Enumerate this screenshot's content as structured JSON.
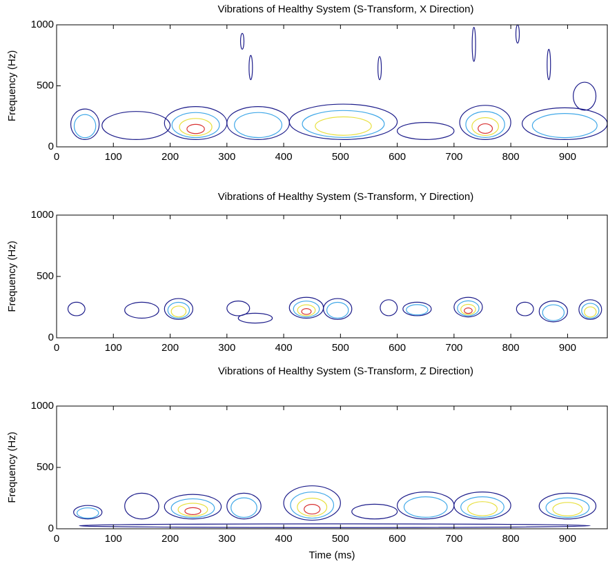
{
  "chart_data": [
    {
      "type": "contour",
      "title": "Vibrations of Healthy System (S-Transform, X Direction)",
      "ylabel": "Frequency (Hz)",
      "xlim": [
        0,
        970
      ],
      "ylim": [
        0,
        1000
      ],
      "xticks": [
        0,
        100,
        200,
        300,
        400,
        500,
        600,
        700,
        800,
        900
      ],
      "yticks": [
        0,
        500,
        1000
      ],
      "level_colors": [
        "#1c1c8a",
        "#40a8e8",
        "#e8e040",
        "#d83030"
      ],
      "blobs": [
        {
          "x": [
            25,
            75
          ],
          "y": [
            60,
            310
          ],
          "level": 2
        },
        {
          "x": [
            80,
            200
          ],
          "y": [
            60,
            290
          ],
          "level": 1
        },
        {
          "x": [
            190,
            300
          ],
          "y": [
            60,
            330
          ],
          "level": 4
        },
        {
          "x": [
            300,
            410
          ],
          "y": [
            60,
            330
          ],
          "level": 2
        },
        {
          "x": [
            410,
            600
          ],
          "y": [
            60,
            350
          ],
          "level": 3
        },
        {
          "x": [
            600,
            700
          ],
          "y": [
            60,
            200
          ],
          "level": 1
        },
        {
          "x": [
            710,
            800
          ],
          "y": [
            60,
            340
          ],
          "level": 4
        },
        {
          "x": [
            820,
            970
          ],
          "y": [
            60,
            320
          ],
          "level": 2
        },
        {
          "x": [
            324,
            330
          ],
          "y": [
            800,
            930
          ],
          "level": 1
        },
        {
          "x": [
            339,
            345
          ],
          "y": [
            550,
            750
          ],
          "level": 1
        },
        {
          "x": [
            566,
            572
          ],
          "y": [
            550,
            740
          ],
          "level": 1
        },
        {
          "x": [
            732,
            738
          ],
          "y": [
            700,
            980
          ],
          "level": 1
        },
        {
          "x": [
            809,
            815
          ],
          "y": [
            850,
            1000
          ],
          "level": 1
        },
        {
          "x": [
            864,
            870
          ],
          "y": [
            550,
            800
          ],
          "level": 1
        },
        {
          "x": [
            910,
            950
          ],
          "y": [
            300,
            530
          ],
          "level": 1
        }
      ]
    },
    {
      "type": "contour",
      "title": "Vibrations of Healthy System (S-Transform, Y Direction)",
      "ylabel": "Frequency (Hz)",
      "xlim": [
        0,
        970
      ],
      "ylim": [
        0,
        1000
      ],
      "xticks": [
        0,
        100,
        200,
        300,
        400,
        500,
        600,
        700,
        800,
        900
      ],
      "yticks": [
        0,
        500,
        1000
      ],
      "level_colors": [
        "#1c1c8a",
        "#40a8e8",
        "#e8e040",
        "#d83030"
      ],
      "blobs": [
        {
          "x": [
            20,
            50
          ],
          "y": [
            180,
            290
          ],
          "level": 1
        },
        {
          "x": [
            120,
            180
          ],
          "y": [
            160,
            290
          ],
          "level": 1
        },
        {
          "x": [
            190,
            240
          ],
          "y": [
            150,
            320
          ],
          "level": 3
        },
        {
          "x": [
            300,
            340
          ],
          "y": [
            180,
            300
          ],
          "level": 1
        },
        {
          "x": [
            320,
            380
          ],
          "y": [
            120,
            200
          ],
          "level": 1
        },
        {
          "x": [
            410,
            470
          ],
          "y": [
            160,
            330
          ],
          "level": 4
        },
        {
          "x": [
            470,
            520
          ],
          "y": [
            150,
            320
          ],
          "level": 2
        },
        {
          "x": [
            570,
            600
          ],
          "y": [
            180,
            310
          ],
          "level": 1
        },
        {
          "x": [
            610,
            660
          ],
          "y": [
            180,
            290
          ],
          "level": 2
        },
        {
          "x": [
            700,
            750
          ],
          "y": [
            170,
            330
          ],
          "level": 4
        },
        {
          "x": [
            810,
            840
          ],
          "y": [
            180,
            290
          ],
          "level": 1
        },
        {
          "x": [
            850,
            900
          ],
          "y": [
            130,
            300
          ],
          "level": 2
        },
        {
          "x": [
            920,
            960
          ],
          "y": [
            150,
            310
          ],
          "level": 3
        }
      ]
    },
    {
      "type": "contour",
      "title": "Vibrations of Healthy System (S-Transform, Z Direction)",
      "ylabel": "Frequency (Hz)",
      "xlabel": "Time (ms)",
      "xlim": [
        0,
        970
      ],
      "ylim": [
        0,
        1000
      ],
      "xticks": [
        0,
        100,
        200,
        300,
        400,
        500,
        600,
        700,
        800,
        900
      ],
      "yticks": [
        0,
        500,
        1000
      ],
      "level_colors": [
        "#1c1c8a",
        "#40a8e8",
        "#e8e040",
        "#d83030"
      ],
      "blobs": [
        {
          "x": [
            30,
            80
          ],
          "y": [
            80,
            190
          ],
          "level": 2
        },
        {
          "x": [
            120,
            180
          ],
          "y": [
            80,
            290
          ],
          "level": 1
        },
        {
          "x": [
            190,
            290
          ],
          "y": [
            80,
            280
          ],
          "level": 4
        },
        {
          "x": [
            300,
            360
          ],
          "y": [
            80,
            290
          ],
          "level": 2
        },
        {
          "x": [
            400,
            500
          ],
          "y": [
            70,
            350
          ],
          "level": 4
        },
        {
          "x": [
            520,
            600
          ],
          "y": [
            80,
            200
          ],
          "level": 1
        },
        {
          "x": [
            600,
            700
          ],
          "y": [
            80,
            300
          ],
          "level": 2
        },
        {
          "x": [
            700,
            800
          ],
          "y": [
            80,
            300
          ],
          "level": 3
        },
        {
          "x": [
            850,
            950
          ],
          "y": [
            80,
            290
          ],
          "level": 3
        },
        {
          "x": [
            40,
            940
          ],
          "y": [
            10,
            40
          ],
          "level": 1
        }
      ]
    }
  ]
}
